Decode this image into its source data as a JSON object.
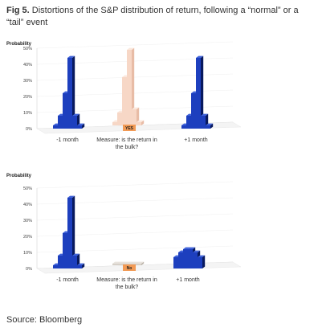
{
  "figure": {
    "label": "Fig 5.",
    "title": "Distortions of the S&P distribution of return, following a “normal” or a “tail” event",
    "source": "Source: Bloomberg"
  },
  "colors": {
    "blue": "#1d3fbe",
    "blue_dark": "#0f2a8c",
    "blue_side": "#08195e",
    "peach": "#f7d7c6",
    "peach_dark": "#e8bca6",
    "gray": "#d6d0c8",
    "gray_dark": "#b9b1a6",
    "orange": "#f29a55",
    "axis": "#c8c8c8"
  },
  "chart_data": [
    {
      "type": "bar",
      "ylabel": "Probability",
      "yticks": [
        "0%",
        "10%",
        "20%",
        "30%",
        "40%",
        "50%"
      ],
      "ylim": [
        0,
        50
      ],
      "groups": [
        {
          "label": "-1 month",
          "values": [
            2,
            8,
            22,
            44,
            8,
            2
          ]
        },
        {
          "label": "Measure: is the return in the bulk?",
          "values": [
            2,
            8,
            30,
            47,
            10,
            2
          ],
          "tag": "YES"
        },
        {
          "label": "+1 month",
          "values": [
            2,
            8,
            22,
            44,
            8,
            2
          ]
        }
      ]
    },
    {
      "type": "bar",
      "ylabel": "Probability",
      "yticks": [
        "0%",
        "10%",
        "20%",
        "30%",
        "40%",
        "50%"
      ],
      "ylim": [
        0,
        50
      ],
      "groups": [
        {
          "label": "-1 month",
          "values": [
            2,
            8,
            22,
            44,
            8,
            2
          ]
        },
        {
          "label": "Measure: is the return in the bulk?",
          "values": [
            1,
            1,
            1,
            1,
            1,
            1
          ],
          "tag": "No"
        },
        {
          "label": "+1 month",
          "values": [
            7,
            10,
            12,
            12,
            10,
            7
          ]
        }
      ]
    }
  ]
}
